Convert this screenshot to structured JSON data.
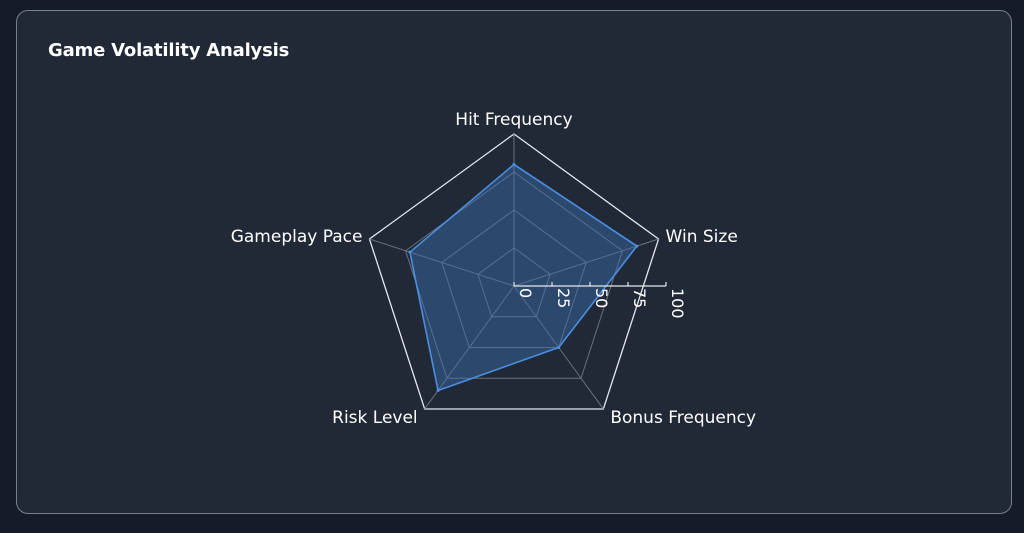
{
  "card": {
    "title": "Game Volatility Analysis"
  },
  "chart_data": {
    "type": "radar",
    "title": "Game Volatility Analysis",
    "axes": [
      "Hit Frequency",
      "Win Size",
      "Bonus Frequency",
      "Risk Level",
      "Gameplay Pace"
    ],
    "ticks": [
      0,
      25,
      50,
      75,
      100
    ],
    "range": [
      0,
      100
    ],
    "series": [
      {
        "values": [
          80,
          85,
          50,
          85,
          72
        ]
      }
    ],
    "colors": {
      "series_stroke": "#4a8fe0",
      "series_fill": "#3a6fb0",
      "outer_grid": "#e6e8ec",
      "inner_grid": "#6b717b",
      "spokes": "#6b717b",
      "scale_axis": "#e6e8ec"
    }
  }
}
